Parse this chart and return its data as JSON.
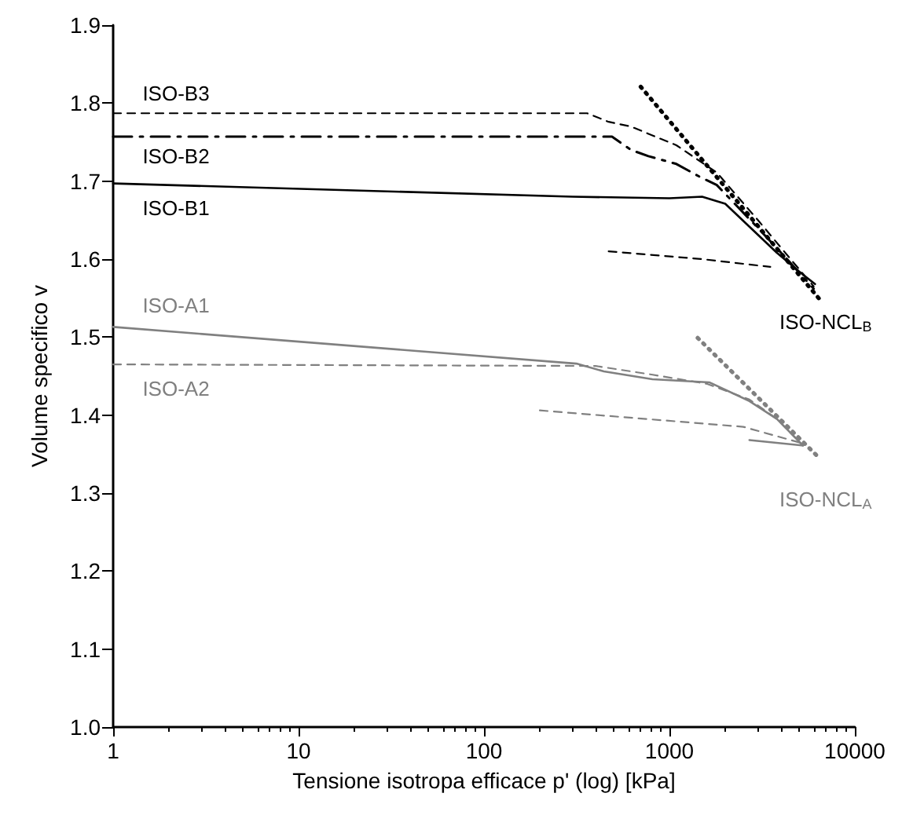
{
  "chart_data": {
    "type": "line",
    "xlabel": "Tensione isotropa efficace p' (log) [kPa]",
    "ylabel": "Volume specifico v",
    "log": "x",
    "grid": false,
    "legend": false,
    "marker": "none",
    "xlim": [
      1,
      10000
    ],
    "xticks": [
      1,
      10,
      100,
      1000,
      10000
    ],
    "ylim": [
      1.0,
      1.9
    ],
    "yticks": [
      {
        "value": 1.0,
        "label": "1.0"
      },
      {
        "value": 1.1,
        "label": "1.1"
      },
      {
        "value": 1.2,
        "label": "1.2"
      },
      {
        "value": 1.3,
        "label": "1.3"
      },
      {
        "value": 1.4,
        "label": "1.4"
      },
      {
        "value": 1.5,
        "label": "1.5"
      },
      {
        "value": 1.6,
        "label": "1.6"
      },
      {
        "value": 1.7,
        "label": "1.7"
      },
      {
        "value": 1.8,
        "label": "1.8"
      },
      {
        "value": 1.9,
        "label": "1.9"
      }
    ],
    "series": [
      {
        "name": "ISO-B3",
        "color": "#000000",
        "line_style": "dashed",
        "x": [
          1,
          360,
          470,
          620,
          860,
          1090,
          1800,
          3000,
          4500,
          6000
        ],
        "values": [
          1.787,
          1.787,
          1.776,
          1.77,
          1.756,
          1.746,
          1.711,
          1.65,
          1.6,
          1.565
        ]
      },
      {
        "name": "ISO-B2",
        "color": "#000000",
        "line_style": "dashdot",
        "x": [
          1,
          490,
          620,
          770,
          1090,
          1470,
          1800,
          3000,
          4500,
          6000
        ],
        "values": [
          1.757,
          1.757,
          1.74,
          1.732,
          1.722,
          1.705,
          1.695,
          1.64,
          1.595,
          1.562
        ]
      },
      {
        "name": "ISO-B1",
        "color": "#000000",
        "line_style": "solid",
        "x": [
          1,
          300,
          1000,
          1500,
          2000,
          3800,
          5250,
          6100
        ],
        "values": [
          1.697,
          1.68,
          1.678,
          1.68,
          1.671,
          1.608,
          1.58,
          1.568
        ]
      },
      {
        "color": "#000000",
        "line_style": "dashed",
        "x": [
          470,
          1500,
          3500
        ],
        "values": [
          1.61,
          1.6,
          1.59
        ]
      },
      {
        "name": "ISO-NCL$_{B}$",
        "color": "#000000",
        "line_style": "dotted",
        "x": [
          700,
          6430
        ],
        "values": [
          1.821,
          1.549
        ]
      },
      {
        "name": "ISO-A1",
        "color": "#808080",
        "line_style": "solid",
        "x": [
          1,
          315,
          443,
          810,
          1640,
          2700,
          3800,
          5250
        ],
        "values": [
          1.513,
          1.466,
          1.456,
          1.446,
          1.442,
          1.418,
          1.395,
          1.361
        ]
      },
      {
        "color": "#808080",
        "line_style": "solid",
        "x": [
          2700,
          5250
        ],
        "values": [
          1.368,
          1.361
        ]
      },
      {
        "name": "ISO-A2",
        "color": "#808080",
        "line_style": "dashed",
        "x": [
          1,
          400,
          800,
          1600,
          2700,
          3800,
          5200
        ],
        "values": [
          1.465,
          1.463,
          1.452,
          1.44,
          1.42,
          1.395,
          1.362
        ]
      },
      {
        "color": "#808080",
        "line_style": "dashed",
        "x": [
          200,
          2500,
          5000
        ],
        "values": [
          1.406,
          1.385,
          1.365
        ]
      },
      {
        "name": "ISO-NCL$_{A}$",
        "color": "#808080",
        "line_style": "dotted",
        "x": [
          1420,
          6430
        ],
        "values": [
          1.499,
          1.345
        ]
      }
    ]
  }
}
